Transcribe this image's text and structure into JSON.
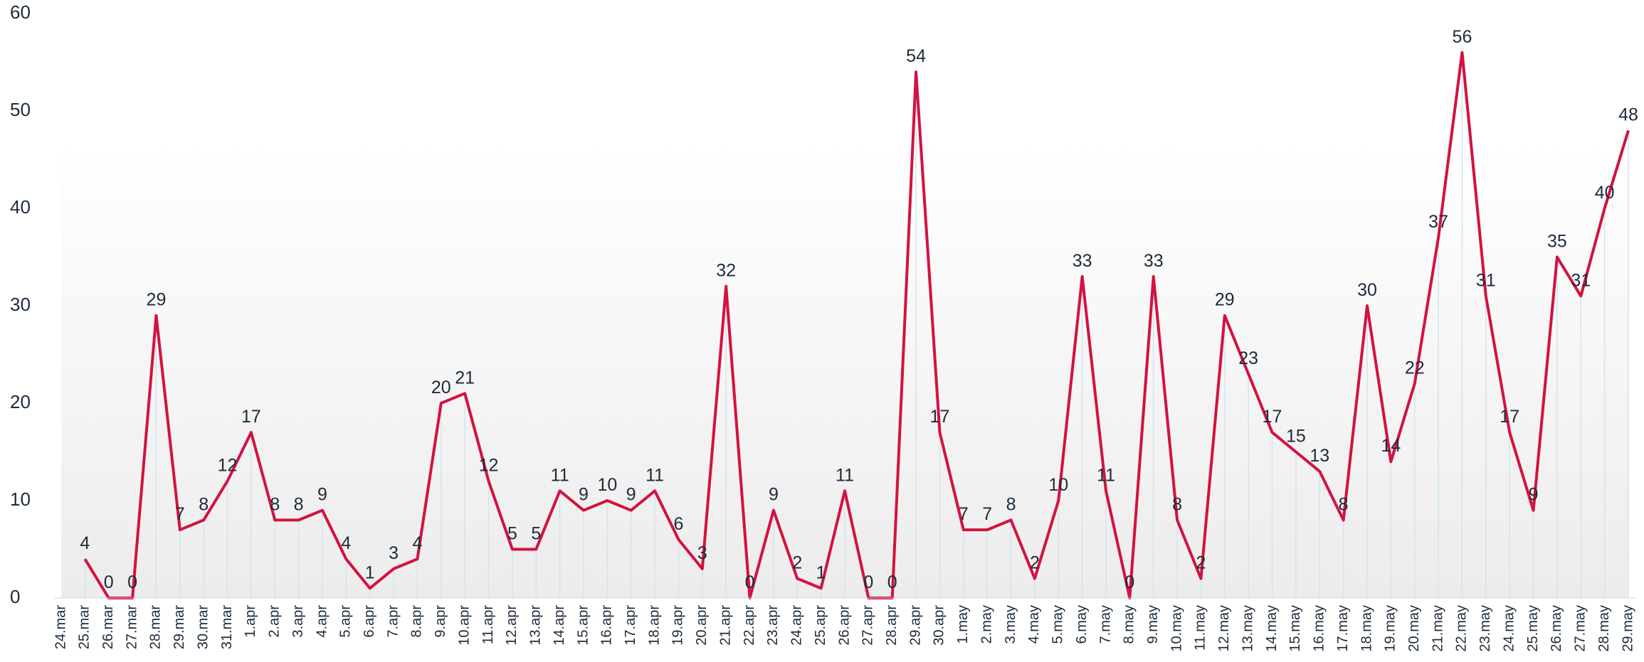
{
  "chart_data": {
    "type": "line",
    "categories": [
      "24.mar",
      "25.mar",
      "26.mar",
      "27.mar",
      "28.mar",
      "29.mar",
      "30.mar",
      "31.mar",
      "1.apr",
      "2.apr",
      "3.apr",
      "4.apr",
      "5.apr",
      "6.apr",
      "7.apr",
      "8.apr",
      "9.apr",
      "10.apr",
      "11.apr",
      "12.apr",
      "13.apr",
      "14.apr",
      "15.apr",
      "16.apr",
      "17.apr",
      "18.apr",
      "19.apr",
      "20.apr",
      "21.apr",
      "22.apr",
      "23.apr",
      "24.apr",
      "25.apr",
      "26.apr",
      "27.apr",
      "28.apr",
      "29.apr",
      "30.apr",
      "1.may",
      "2.may",
      "3.may",
      "4.may",
      "5.may",
      "6.may",
      "7.may",
      "8.may",
      "9.may",
      "10.may",
      "11.may",
      "12.may",
      "13.may",
      "14.may",
      "15.may",
      "16.may",
      "17.may",
      "18.may",
      "19.may",
      "20.may",
      "21.may",
      "22.may",
      "23.may",
      "24.may",
      "25.may",
      "26.may",
      "27.may",
      "28.may",
      "29.may"
    ],
    "series": [
      {
        "color": "#d3123f",
        "values": [
          null,
          4,
          0,
          0,
          29,
          7,
          8,
          12,
          17,
          8,
          8,
          9,
          4,
          1,
          3,
          4,
          20,
          21,
          12,
          5,
          5,
          11,
          9,
          10,
          9,
          11,
          6,
          3,
          32,
          0,
          9,
          2,
          1,
          11,
          0,
          0,
          54,
          17,
          7,
          7,
          8,
          2,
          10,
          33,
          11,
          0,
          33,
          8,
          2,
          29,
          23,
          17,
          15,
          13,
          8,
          30,
          14,
          22,
          37,
          56,
          31,
          17,
          9,
          35,
          31,
          40,
          48
        ]
      }
    ],
    "ylim": [
      0,
      60
    ],
    "yticks": [
      0,
      10,
      20,
      30,
      40,
      50,
      60
    ],
    "grid": false,
    "data_labels": true,
    "drop_lines": true
  }
}
